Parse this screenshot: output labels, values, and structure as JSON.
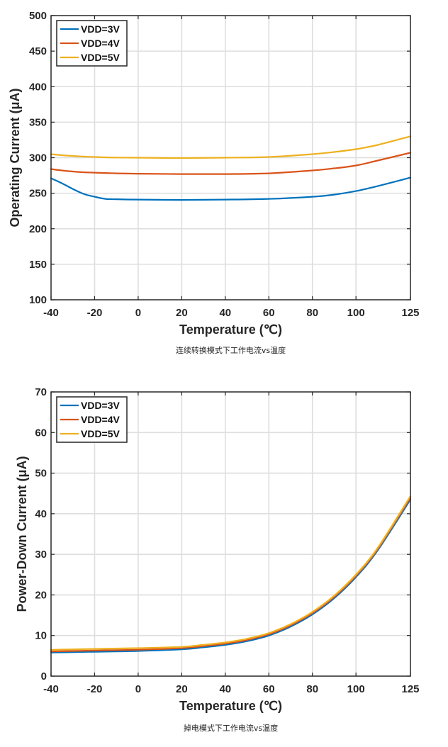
{
  "chart_data": [
    {
      "type": "line",
      "xlabel": "Temperature (℃)",
      "ylabel": "Operating Current (μA)",
      "caption": "连续转换模式下工作电流vs温度",
      "xlim": [
        -40,
        125
      ],
      "ylim": [
        100,
        500
      ],
      "xticks": [
        -40,
        -20,
        0,
        20,
        40,
        60,
        80,
        100,
        125
      ],
      "yticks": [
        100,
        150,
        200,
        250,
        300,
        350,
        400,
        450,
        500
      ],
      "xtick_labels": [
        "-40",
        "-20",
        "0",
        "20",
        "40",
        "60",
        "80",
        "100",
        "125"
      ],
      "ytick_labels": [
        "100",
        "150",
        "200",
        "250",
        "300",
        "350",
        "400",
        "450",
        "500"
      ],
      "grid": true,
      "legend_position": "top-left",
      "x": [
        -40,
        -35,
        -30,
        -25,
        -20,
        -15,
        -10,
        0,
        20,
        40,
        60,
        80,
        90,
        100,
        110,
        125
      ],
      "series": [
        {
          "name": "VDD=3V",
          "color": "#0072BD",
          "values": [
            271,
            264,
            256,
            249,
            245,
            242,
            241.5,
            241,
            240.5,
            241,
            242,
            245,
            248,
            253,
            260,
            272
          ]
        },
        {
          "name": "VDD=4V",
          "color": "#D95319",
          "values": [
            284,
            282,
            280.5,
            279.5,
            279,
            278.5,
            278,
            277.5,
            277,
            277,
            278,
            282,
            285,
            289,
            296,
            307
          ]
        },
        {
          "name": "VDD=5V",
          "color": "#EDB120",
          "values": [
            305,
            303.5,
            302.5,
            301.5,
            301,
            300.5,
            300.2,
            300,
            299.5,
            300,
            301,
            305,
            308,
            312,
            318,
            330
          ]
        }
      ]
    },
    {
      "type": "line",
      "xlabel": "Temperature (℃)",
      "ylabel": "Power-Down Current (μA)",
      "caption": "掉电模式下工作电流vs温度",
      "xlim": [
        -40,
        125
      ],
      "ylim": [
        0,
        70
      ],
      "xticks": [
        -40,
        -20,
        0,
        20,
        40,
        60,
        80,
        100,
        125
      ],
      "yticks": [
        0,
        10,
        20,
        30,
        40,
        50,
        60,
        70
      ],
      "xtick_labels": [
        "-40",
        "-20",
        "0",
        "20",
        "40",
        "60",
        "80",
        "100",
        "125"
      ],
      "ytick_labels": [
        "0",
        "10",
        "20",
        "30",
        "40",
        "50",
        "60",
        "70"
      ],
      "grid": true,
      "legend_position": "top-left",
      "x": [
        -40,
        -20,
        0,
        20,
        30,
        40,
        50,
        60,
        70,
        80,
        90,
        100,
        110,
        125
      ],
      "series": [
        {
          "name": "VDD=3V",
          "color": "#0072BD",
          "values": [
            5.8,
            6.0,
            6.2,
            6.6,
            7.1,
            7.7,
            8.6,
            10.0,
            12.2,
            15.2,
            19.2,
            24.4,
            31.0,
            43.5
          ]
        },
        {
          "name": "VDD=4V",
          "color": "#D95319",
          "values": [
            6.1,
            6.3,
            6.5,
            6.9,
            7.4,
            8.0,
            8.9,
            10.3,
            12.5,
            15.5,
            19.5,
            24.7,
            31.3,
            43.9
          ]
        },
        {
          "name": "VDD=5V",
          "color": "#EDB120",
          "values": [
            6.5,
            6.7,
            6.9,
            7.2,
            7.7,
            8.3,
            9.2,
            10.6,
            12.8,
            15.8,
            19.8,
            25.0,
            31.6,
            44.3
          ]
        }
      ]
    }
  ]
}
